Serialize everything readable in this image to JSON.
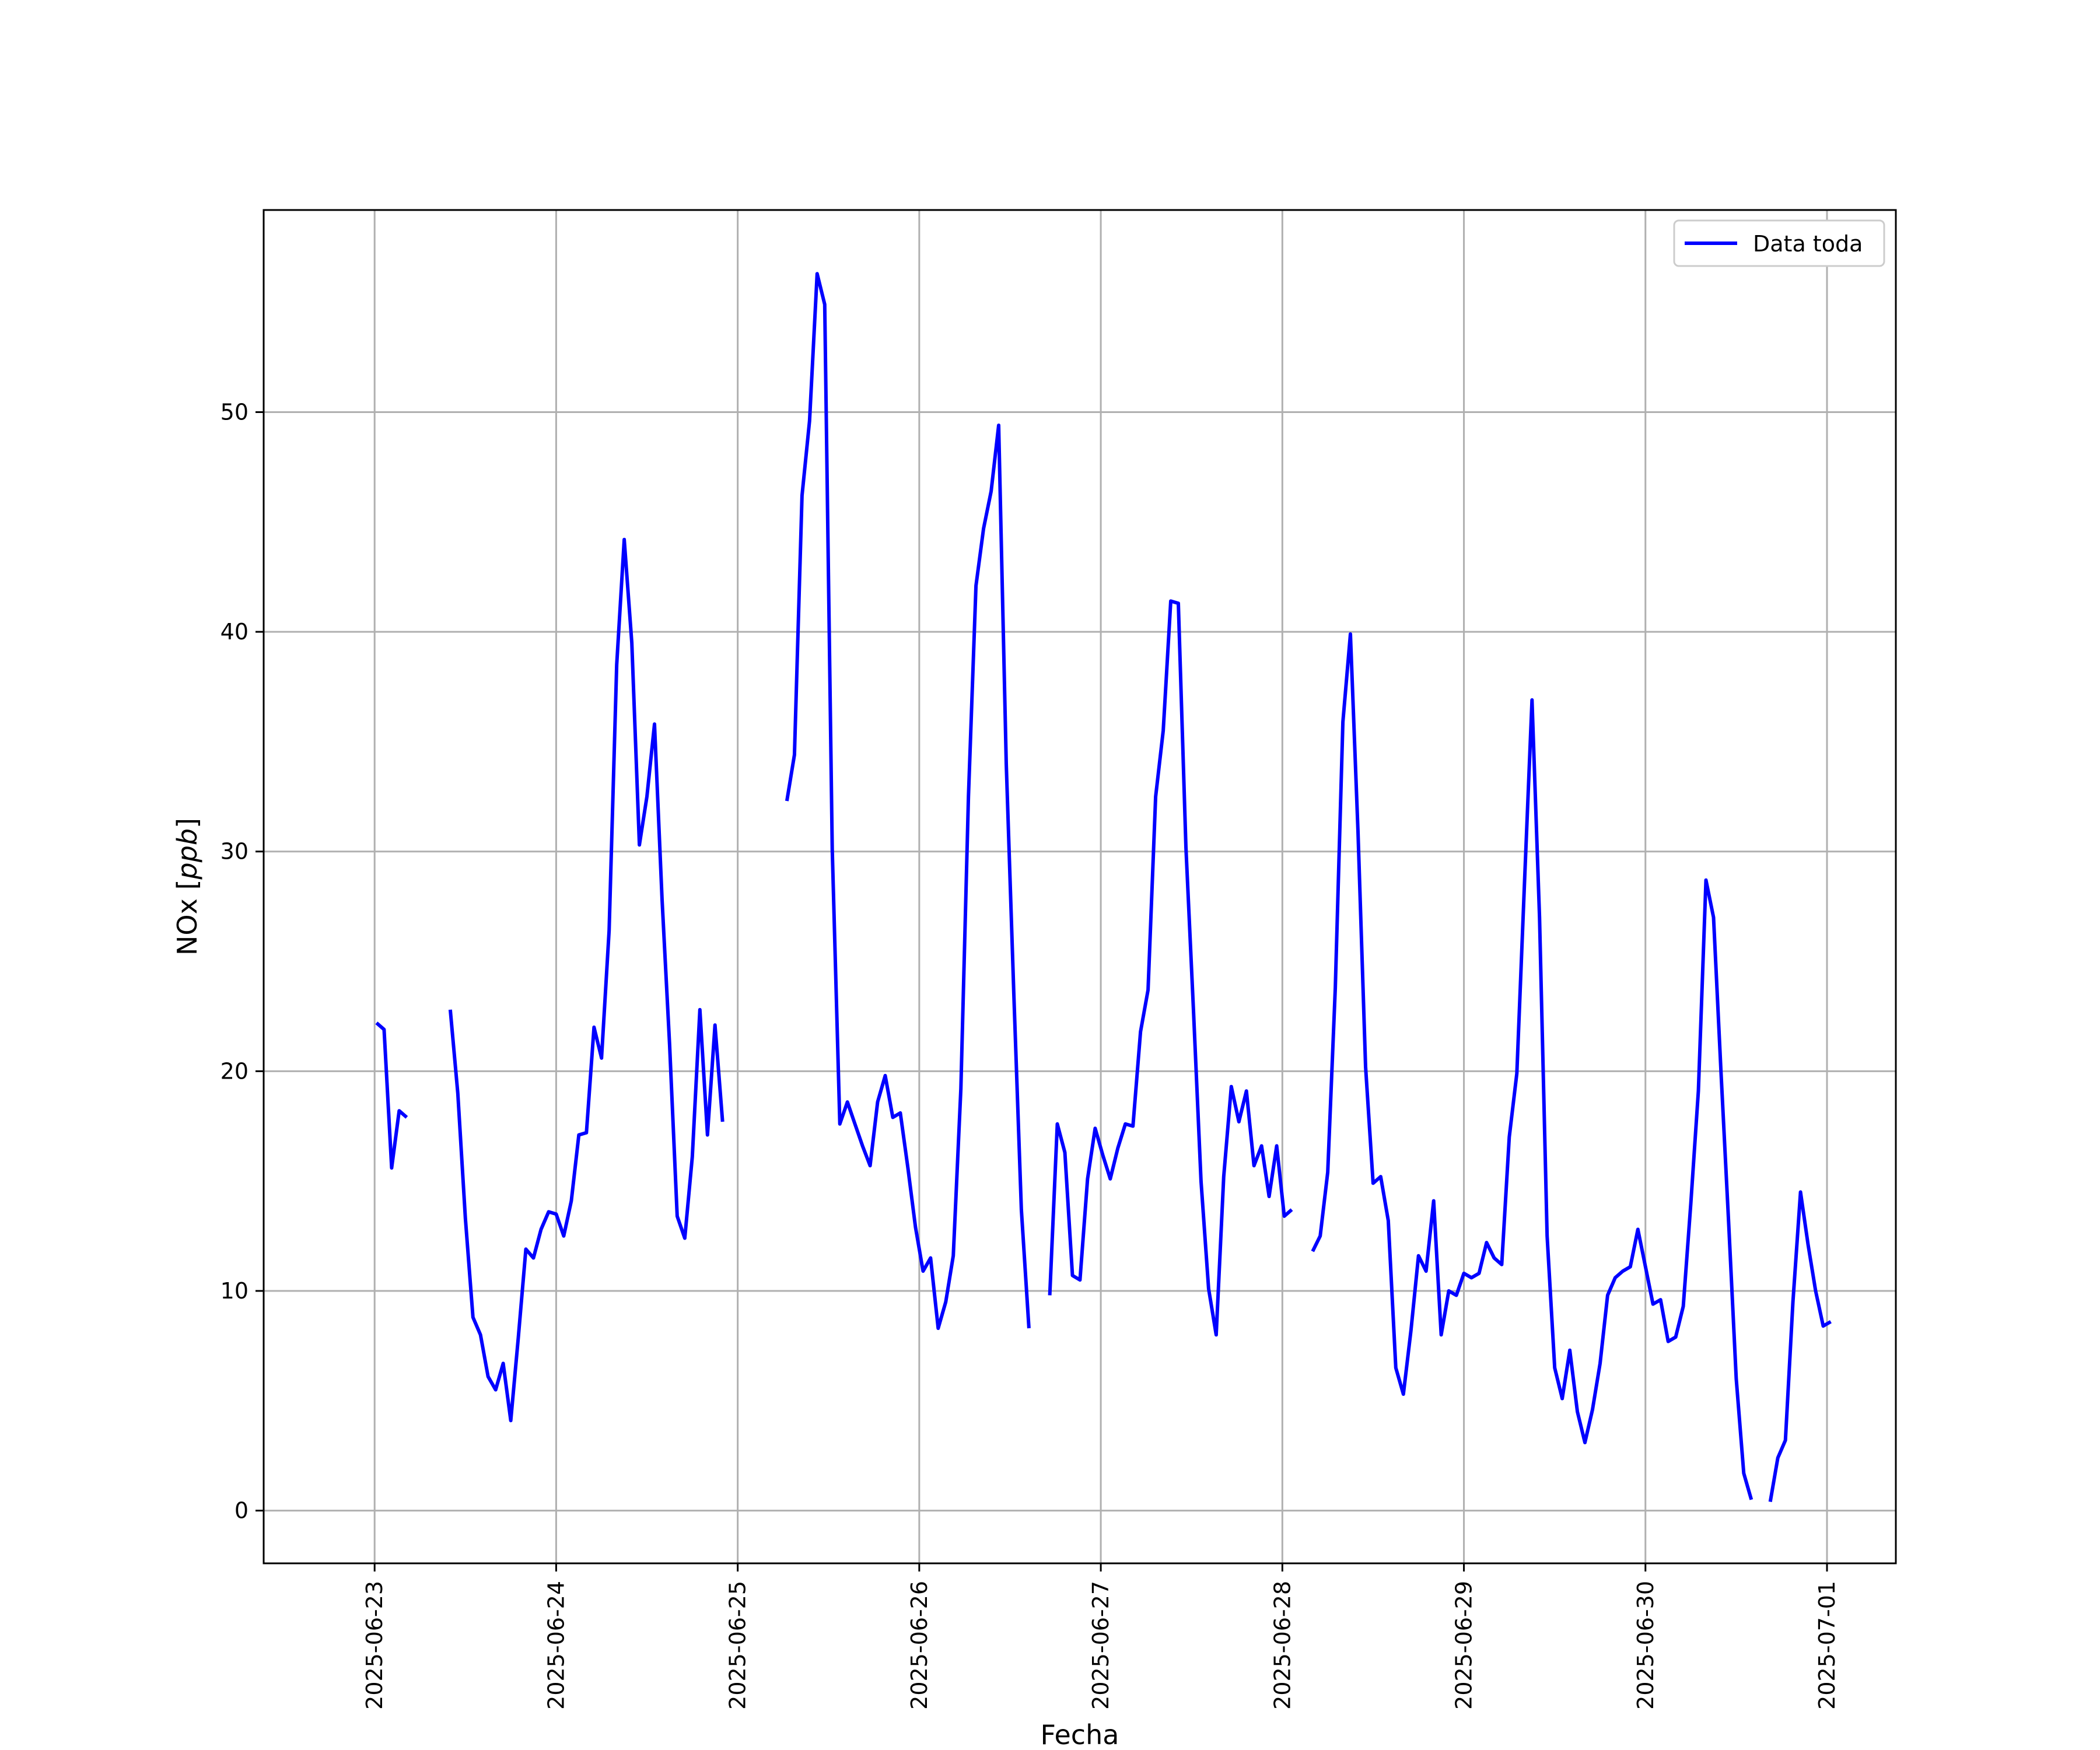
{
  "chart_data": {
    "type": "line",
    "xlabel": "Fecha",
    "ylabel": "NOx [ppb]",
    "x_tick_labels": [
      "2025-06-23",
      "2025-06-24",
      "2025-06-25",
      "2025-06-26",
      "2025-06-27",
      "2025-06-28",
      "2025-06-29",
      "2025-06-30",
      "2025-07-01"
    ],
    "x_tick_dates": [
      "2025-06-23",
      "2025-06-24",
      "2025-06-25",
      "2025-06-26",
      "2025-06-27",
      "2025-06-28",
      "2025-06-29",
      "2025-06-30",
      "2025-07-01"
    ],
    "xlim": [
      "2025-06-22 09:20",
      "2025-07-01 09:06"
    ],
    "y_ticks": [
      0,
      10,
      20,
      30,
      40,
      50
    ],
    "y_tick_labels": [
      "0",
      "10",
      "20",
      "30",
      "40",
      "50"
    ],
    "ylim": [
      -2.4,
      59.2
    ],
    "grid": true,
    "legend_position": "top-right",
    "color": "#0000ff",
    "series": [
      {
        "name": "Data toda",
        "segments": [
          [
            [
              "2025-06-23 00:15",
              22.2
            ],
            [
              "2025-06-23 01:15",
              21.9
            ],
            [
              "2025-06-23 02:15",
              15.6
            ],
            [
              "2025-06-23 03:15",
              18.2
            ],
            [
              "2025-06-23 04:15",
              17.9
            ]
          ],
          [
            [
              "2025-06-23 10:00",
              22.8
            ],
            [
              "2025-06-23 11:00",
              19.0
            ],
            [
              "2025-06-23 12:00",
              13.3
            ],
            [
              "2025-06-23 13:00",
              8.8
            ],
            [
              "2025-06-23 14:00",
              8.0
            ],
            [
              "2025-06-23 15:00",
              6.1
            ],
            [
              "2025-06-23 16:00",
              5.5
            ],
            [
              "2025-06-23 17:00",
              6.7
            ],
            [
              "2025-06-23 18:00",
              4.1
            ],
            [
              "2025-06-23 19:00",
              7.9
            ],
            [
              "2025-06-23 20:00",
              11.9
            ],
            [
              "2025-06-23 21:00",
              11.5
            ],
            [
              "2025-06-23 22:00",
              12.8
            ],
            [
              "2025-06-23 23:00",
              13.6
            ],
            [
              "2025-06-24 00:00",
              13.5
            ],
            [
              "2025-06-24 01:00",
              12.5
            ],
            [
              "2025-06-24 02:00",
              14.1
            ],
            [
              "2025-06-24 03:00",
              17.1
            ],
            [
              "2025-06-24 04:00",
              17.2
            ],
            [
              "2025-06-24 05:00",
              22.0
            ],
            [
              "2025-06-24 06:00",
              20.6
            ],
            [
              "2025-06-24 07:00",
              26.4
            ],
            [
              "2025-06-24 08:00",
              38.5
            ],
            [
              "2025-06-24 09:00",
              44.2
            ],
            [
              "2025-06-24 10:00",
              39.5
            ],
            [
              "2025-06-24 11:00",
              30.3
            ],
            [
              "2025-06-24 12:00",
              32.5
            ],
            [
              "2025-06-24 13:00",
              35.8
            ],
            [
              "2025-06-24 14:00",
              27.8
            ],
            [
              "2025-06-24 15:00",
              21.2
            ],
            [
              "2025-06-24 16:00",
              13.4
            ],
            [
              "2025-06-24 17:00",
              12.4
            ],
            [
              "2025-06-24 18:00",
              16.1
            ],
            [
              "2025-06-24 19:00",
              22.8
            ],
            [
              "2025-06-24 20:00",
              17.1
            ],
            [
              "2025-06-24 21:00",
              22.1
            ],
            [
              "2025-06-24 22:00",
              17.7
            ]
          ],
          [
            [
              "2025-06-25 06:30",
              32.3
            ],
            [
              "2025-06-25 07:30",
              34.4
            ],
            [
              "2025-06-25 08:30",
              46.2
            ],
            [
              "2025-06-25 09:30",
              49.6
            ],
            [
              "2025-06-25 10:30",
              56.3
            ],
            [
              "2025-06-25 11:30",
              54.9
            ],
            [
              "2025-06-25 12:30",
              30.1
            ],
            [
              "2025-06-25 13:30",
              17.6
            ],
            [
              "2025-06-25 14:30",
              18.6
            ],
            [
              "2025-06-25 15:30",
              17.6
            ],
            [
              "2025-06-25 16:30",
              16.6
            ],
            [
              "2025-06-25 17:30",
              15.7
            ],
            [
              "2025-06-25 18:30",
              18.6
            ],
            [
              "2025-06-25 19:30",
              19.8
            ],
            [
              "2025-06-25 20:30",
              17.9
            ],
            [
              "2025-06-25 21:30",
              18.1
            ],
            [
              "2025-06-25 22:30",
              15.6
            ],
            [
              "2025-06-25 23:30",
              12.9
            ],
            [
              "2025-06-26 00:30",
              10.9
            ],
            [
              "2025-06-26 01:30",
              11.5
            ],
            [
              "2025-06-26 02:30",
              8.3
            ],
            [
              "2025-06-26 03:30",
              9.5
            ],
            [
              "2025-06-26 04:30",
              11.6
            ],
            [
              "2025-06-26 05:30",
              19.2
            ],
            [
              "2025-06-26 06:30",
              32.5
            ],
            [
              "2025-06-26 07:30",
              42.1
            ],
            [
              "2025-06-26 08:30",
              44.7
            ],
            [
              "2025-06-26 09:30",
              46.4
            ],
            [
              "2025-06-26 10:30",
              49.4
            ],
            [
              "2025-06-26 11:30",
              34.0
            ],
            [
              "2025-06-26 12:30",
              23.5
            ],
            [
              "2025-06-26 13:30",
              13.7
            ],
            [
              "2025-06-26 14:30",
              8.3
            ]
          ],
          [
            [
              "2025-06-26 17:15",
              9.8
            ],
            [
              "2025-06-26 18:15",
              17.6
            ],
            [
              "2025-06-26 19:15",
              16.3
            ],
            [
              "2025-06-26 20:15",
              10.7
            ],
            [
              "2025-06-26 21:15",
              10.5
            ],
            [
              "2025-06-26 22:15",
              15.1
            ],
            [
              "2025-06-26 23:15",
              17.4
            ],
            [
              "2025-06-27 00:15",
              16.2
            ],
            [
              "2025-06-27 01:15",
              15.1
            ],
            [
              "2025-06-27 02:15",
              16.5
            ],
            [
              "2025-06-27 03:15",
              17.6
            ],
            [
              "2025-06-27 04:15",
              17.5
            ],
            [
              "2025-06-27 05:15",
              21.8
            ],
            [
              "2025-06-27 06:15",
              23.7
            ],
            [
              "2025-06-27 07:15",
              32.5
            ],
            [
              "2025-06-27 08:15",
              35.5
            ],
            [
              "2025-06-27 09:15",
              41.4
            ],
            [
              "2025-06-27 10:15",
              41.3
            ],
            [
              "2025-06-27 11:15",
              30.2
            ],
            [
              "2025-06-27 12:15",
              22.8
            ],
            [
              "2025-06-27 13:15",
              15.0
            ],
            [
              "2025-06-27 14:15",
              10.1
            ],
            [
              "2025-06-27 15:15",
              8.0
            ],
            [
              "2025-06-27 16:15",
              15.2
            ],
            [
              "2025-06-27 17:15",
              19.3
            ],
            [
              "2025-06-27 18:15",
              17.7
            ],
            [
              "2025-06-27 19:15",
              19.1
            ],
            [
              "2025-06-27 20:15",
              15.7
            ],
            [
              "2025-06-27 21:15",
              16.6
            ],
            [
              "2025-06-27 22:15",
              14.3
            ],
            [
              "2025-06-27 23:15",
              16.6
            ],
            [
              "2025-06-28 00:15",
              13.4
            ],
            [
              "2025-06-28 01:15",
              13.7
            ]
          ],
          [
            [
              "2025-06-28 04:00",
              11.8
            ],
            [
              "2025-06-28 05:00",
              12.5
            ],
            [
              "2025-06-28 06:00",
              15.4
            ],
            [
              "2025-06-28 07:00",
              23.8
            ],
            [
              "2025-06-28 08:00",
              35.9
            ],
            [
              "2025-06-28 09:00",
              39.9
            ],
            [
              "2025-06-28 10:00",
              30.9
            ],
            [
              "2025-06-28 11:00",
              20.2
            ],
            [
              "2025-06-28 12:00",
              14.9
            ],
            [
              "2025-06-28 13:00",
              15.2
            ],
            [
              "2025-06-28 14:00",
              13.2
            ],
            [
              "2025-06-28 15:00",
              6.5
            ],
            [
              "2025-06-28 16:00",
              5.3
            ],
            [
              "2025-06-28 17:00",
              8.2
            ],
            [
              "2025-06-28 18:00",
              11.6
            ],
            [
              "2025-06-28 19:00",
              10.9
            ],
            [
              "2025-06-28 20:00",
              14.1
            ],
            [
              "2025-06-28 21:00",
              8.0
            ],
            [
              "2025-06-28 22:00",
              10.0
            ],
            [
              "2025-06-28 23:00",
              9.8
            ],
            [
              "2025-06-29 00:00",
              10.8
            ],
            [
              "2025-06-29 01:00",
              10.6
            ],
            [
              "2025-06-29 02:00",
              10.8
            ],
            [
              "2025-06-29 03:00",
              12.2
            ],
            [
              "2025-06-29 04:00",
              11.5
            ],
            [
              "2025-06-29 05:00",
              11.2
            ],
            [
              "2025-06-29 06:00",
              17.0
            ],
            [
              "2025-06-29 07:00",
              19.9
            ],
            [
              "2025-06-29 08:00",
              28.5
            ],
            [
              "2025-06-29 09:00",
              36.9
            ],
            [
              "2025-06-29 10:00",
              27.0
            ],
            [
              "2025-06-29 11:00",
              12.5
            ],
            [
              "2025-06-29 12:00",
              6.5
            ],
            [
              "2025-06-29 13:00",
              5.1
            ],
            [
              "2025-06-29 14:00",
              7.3
            ],
            [
              "2025-06-29 15:00",
              4.5
            ],
            [
              "2025-06-29 16:00",
              3.1
            ],
            [
              "2025-06-29 17:00",
              4.6
            ],
            [
              "2025-06-29 18:00",
              6.7
            ],
            [
              "2025-06-29 19:00",
              9.8
            ],
            [
              "2025-06-29 20:00",
              10.6
            ],
            [
              "2025-06-29 21:00",
              10.9
            ],
            [
              "2025-06-29 22:00",
              11.1
            ],
            [
              "2025-06-29 23:00",
              12.8
            ],
            [
              "2025-06-30 00:00",
              11.1
            ],
            [
              "2025-06-30 01:00",
              9.4
            ],
            [
              "2025-06-30 02:00",
              9.6
            ],
            [
              "2025-06-30 03:00",
              7.7
            ],
            [
              "2025-06-30 04:00",
              7.9
            ],
            [
              "2025-06-30 05:00",
              9.3
            ],
            [
              "2025-06-30 06:00",
              14.0
            ],
            [
              "2025-06-30 07:00",
              19.1
            ],
            [
              "2025-06-30 08:00",
              28.7
            ],
            [
              "2025-06-30 09:00",
              27.0
            ],
            [
              "2025-06-30 10:00",
              19.9
            ],
            [
              "2025-06-30 11:00",
              13.1
            ],
            [
              "2025-06-30 12:00",
              6.0
            ],
            [
              "2025-06-30 13:00",
              1.7
            ],
            [
              "2025-06-30 14:00",
              0.5
            ]
          ],
          [
            [
              "2025-06-30 16:30",
              0.4
            ],
            [
              "2025-06-30 17:30",
              2.4
            ],
            [
              "2025-06-30 18:30",
              3.2
            ],
            [
              "2025-06-30 19:30",
              9.5
            ],
            [
              "2025-06-30 20:30",
              14.5
            ],
            [
              "2025-06-30 21:30",
              12.1
            ],
            [
              "2025-06-30 22:30",
              10.0
            ],
            [
              "2025-06-30 23:30",
              8.4
            ],
            [
              "2025-07-01 00:30",
              8.6
            ]
          ]
        ]
      }
    ]
  }
}
